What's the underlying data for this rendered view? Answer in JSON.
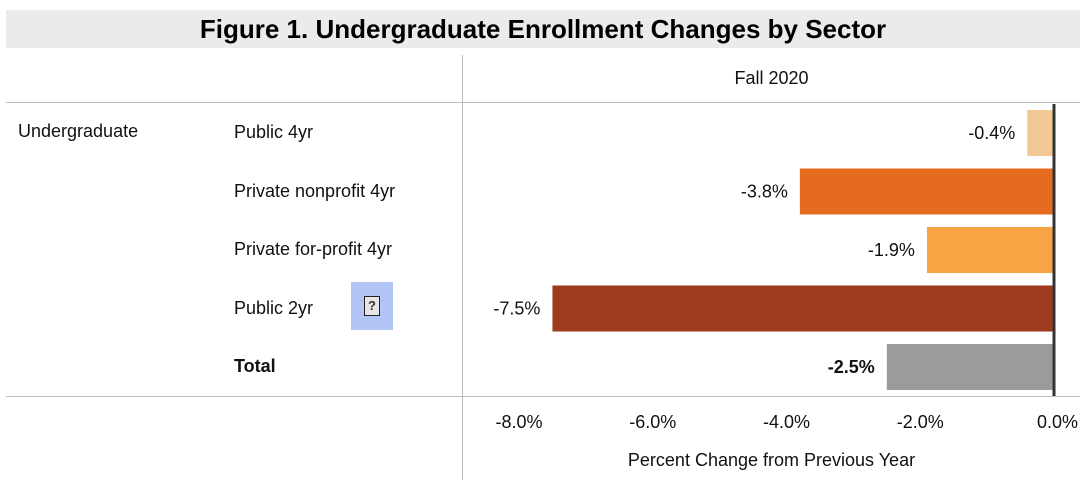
{
  "title": "Figure 1. Undergraduate Enrollment Changes by Sector",
  "group_label": "Undergraduate",
  "help_icon": "?",
  "chart_data": {
    "type": "bar",
    "orientation": "horizontal",
    "column_header": "Fall 2020",
    "categories": [
      "Public 4yr",
      "Private nonprofit 4yr",
      "Private for-profit 4yr",
      "Public 2yr",
      "Total"
    ],
    "values": [
      -0.4,
      -3.8,
      -1.9,
      -7.5,
      -2.5
    ],
    "value_labels": [
      "-0.4%",
      "-3.8%",
      "-1.9%",
      "-7.5%",
      "-2.5%"
    ],
    "colors": [
      "#f2c996",
      "#e56b1f",
      "#f7a444",
      "#9e3a1e",
      "#9b9b9b"
    ],
    "xlabel": "Percent Change from Previous Year",
    "xlim": [
      -8.0,
      0.0
    ],
    "xticks": [
      -8,
      -6,
      -4,
      -2,
      0
    ],
    "xtick_labels": [
      "-8.0%",
      "-6.0%",
      "-4.0%",
      "-2.0%",
      "0.0%"
    ],
    "grid": false
  }
}
